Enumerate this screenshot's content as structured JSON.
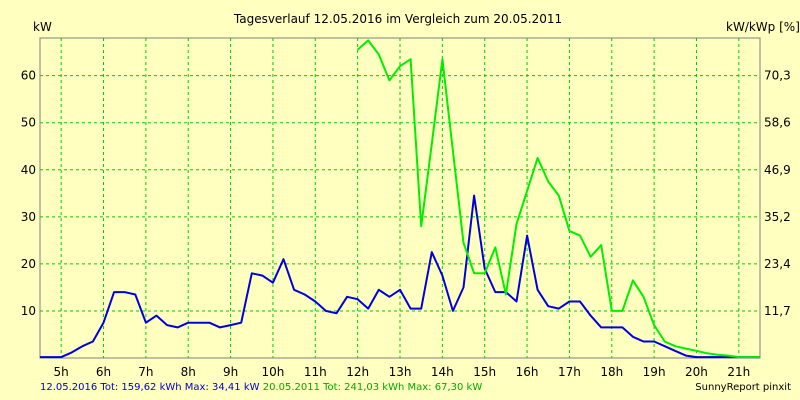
{
  "chart_data": {
    "type": "line",
    "title": "Tagesverlauf 12.05.2016 im Vergleich zum 20.05.2011",
    "ylabel_left": "kW",
    "ylabel_right": "kW/kWp [%]",
    "ylim": [
      0,
      68
    ],
    "xlim": [
      4.5,
      21.5
    ],
    "grid": true,
    "colors": {
      "background": "#ffffc0",
      "grid": "#00cc00",
      "series_2016": "#0000dd",
      "series_2011": "#00ee00",
      "footer_2016": "#0000cc",
      "footer_2011": "#00aa00"
    },
    "x_ticks": [
      "5h",
      "6h",
      "7h",
      "8h",
      "9h",
      "10h",
      "11h",
      "12h",
      "13h",
      "14h",
      "15h",
      "16h",
      "17h",
      "18h",
      "19h",
      "20h",
      "21h"
    ],
    "y_ticks_left": [
      "10",
      "20",
      "30",
      "40",
      "50",
      "60"
    ],
    "y_ticks_right": [
      "11,7",
      "23,4",
      "35,2",
      "46,9",
      "58,6",
      "70,3"
    ],
    "series": [
      {
        "name": "12.05.2016",
        "points": [
          [
            4.5,
            0.2
          ],
          [
            5,
            0.2
          ],
          [
            5.25,
            1.2
          ],
          [
            5.5,
            2.5
          ],
          [
            5.75,
            3.5
          ],
          [
            6,
            7.5
          ],
          [
            6.25,
            14
          ],
          [
            6.5,
            14
          ],
          [
            6.75,
            13.5
          ],
          [
            7,
            7.5
          ],
          [
            7.25,
            9
          ],
          [
            7.5,
            7
          ],
          [
            7.75,
            6.5
          ],
          [
            8,
            7.5
          ],
          [
            8.25,
            7.5
          ],
          [
            8.5,
            7.5
          ],
          [
            8.75,
            6.5
          ],
          [
            9,
            7
          ],
          [
            9.25,
            7.5
          ],
          [
            9.5,
            18
          ],
          [
            9.75,
            17.5
          ],
          [
            10,
            16
          ],
          [
            10.25,
            21
          ],
          [
            10.5,
            14.5
          ],
          [
            10.75,
            13.5
          ],
          [
            11,
            12
          ],
          [
            11.25,
            10
          ],
          [
            11.5,
            9.5
          ],
          [
            11.75,
            13
          ],
          [
            12,
            12.5
          ],
          [
            12.25,
            10.5
          ],
          [
            12.5,
            14.5
          ],
          [
            12.75,
            13
          ],
          [
            13,
            14.5
          ],
          [
            13.25,
            10.5
          ],
          [
            13.5,
            10.5
          ],
          [
            13.75,
            22.5
          ],
          [
            14,
            17.5
          ],
          [
            14.25,
            10
          ],
          [
            14.5,
            15
          ],
          [
            14.75,
            34.5
          ],
          [
            15,
            19
          ],
          [
            15.25,
            14
          ],
          [
            15.5,
            14
          ],
          [
            15.75,
            12
          ],
          [
            16,
            26
          ],
          [
            16.25,
            14.5
          ],
          [
            16.5,
            11
          ],
          [
            16.75,
            10.5
          ],
          [
            17,
            12
          ],
          [
            17.25,
            12
          ],
          [
            17.5,
            9
          ],
          [
            17.75,
            6.5
          ],
          [
            18,
            6.5
          ],
          [
            18.25,
            6.5
          ],
          [
            18.5,
            4.5
          ],
          [
            18.75,
            3.5
          ],
          [
            19,
            3.5
          ],
          [
            19.25,
            2.5
          ],
          [
            19.5,
            1.5
          ],
          [
            19.75,
            0.5
          ],
          [
            20,
            0.2
          ],
          [
            21.5,
            0.2
          ]
        ]
      },
      {
        "name": "20.05.2011",
        "points": [
          [
            12,
            65.5
          ],
          [
            12.25,
            67.5
          ],
          [
            12.5,
            64.5
          ],
          [
            12.75,
            59
          ],
          [
            13,
            62
          ],
          [
            13.25,
            63.5
          ],
          [
            13.5,
            28
          ],
          [
            13.75,
            45.5
          ],
          [
            14,
            63.5
          ],
          [
            14.25,
            44
          ],
          [
            14.5,
            24.5
          ],
          [
            14.75,
            18
          ],
          [
            15,
            18
          ],
          [
            15.25,
            23.5
          ],
          [
            15.5,
            13.5
          ],
          [
            15.75,
            28.5
          ],
          [
            16,
            35.5
          ],
          [
            16.25,
            42.5
          ],
          [
            16.5,
            37.5
          ],
          [
            16.75,
            34.5
          ],
          [
            17,
            27
          ],
          [
            17.25,
            26
          ],
          [
            17.5,
            21.5
          ],
          [
            17.75,
            24
          ],
          [
            18,
            10
          ],
          [
            18.25,
            10
          ],
          [
            18.5,
            16.5
          ],
          [
            18.75,
            13
          ],
          [
            19,
            7
          ],
          [
            19.25,
            3.5
          ],
          [
            19.5,
            2.5
          ],
          [
            19.75,
            2
          ],
          [
            20,
            1.5
          ],
          [
            20.25,
            1
          ],
          [
            20.5,
            0.7
          ],
          [
            20.75,
            0.5
          ],
          [
            21,
            0.2
          ],
          [
            21.5,
            0.2
          ]
        ]
      }
    ]
  },
  "footer": {
    "left_2016": "12.05.2016 Tot: 159,62 kWh Max: 34,41 kW",
    "left_2011": "20.05.2011 Tot: 241,03 kWh Max: 67,30 kW",
    "right": "SunnyReport pinxit"
  }
}
